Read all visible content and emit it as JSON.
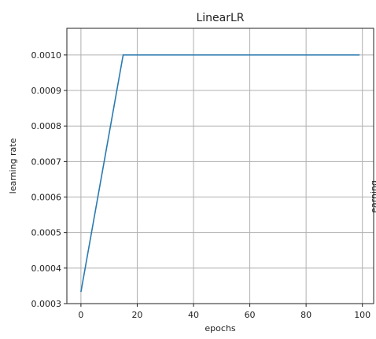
{
  "chart_data": {
    "type": "line",
    "title": "LinearLR",
    "xlabel": "epochs",
    "ylabel": "learning rate",
    "xlim": [
      -5,
      104
    ],
    "ylim": [
      0.0003,
      0.001075
    ],
    "xticks": [
      0,
      20,
      40,
      60,
      80,
      100
    ],
    "xtick_labels": [
      "0",
      "20",
      "40",
      "60",
      "80",
      "100"
    ],
    "yticks": [
      0.0003,
      0.0004,
      0.0005,
      0.0006,
      0.0007,
      0.0008,
      0.0009,
      0.001
    ],
    "ytick_labels": [
      "0.0003",
      "0.0004",
      "0.0005",
      "0.0006",
      "0.0007",
      "0.0008",
      "0.0009",
      "0.0010"
    ],
    "grid": true,
    "series": [
      {
        "color": "#2a7ab0",
        "x": [
          0,
          15,
          99
        ],
        "y": [
          0.000333,
          0.001,
          0.001
        ]
      }
    ]
  },
  "side_label": "learning rate"
}
